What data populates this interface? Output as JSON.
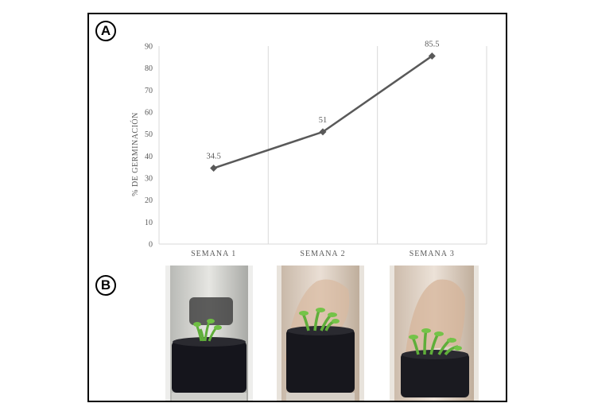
{
  "panels": {
    "a": "A",
    "b": "B"
  },
  "chart_data": {
    "type": "line",
    "categories": [
      "SEMANA 1",
      "SEMANA 2",
      "SEMANA 3"
    ],
    "series": [
      {
        "values": [
          34.5,
          51,
          85.5
        ]
      }
    ],
    "data_labels": [
      "34.5",
      "51",
      "85.5"
    ],
    "ylabel": "% DE GERMINACIÓN",
    "ylim": [
      0,
      90
    ],
    "yticks": [
      0,
      10,
      20,
      30,
      40,
      50,
      60,
      70,
      80,
      90
    ],
    "vertical_separators": true,
    "line_color": "#595959",
    "marker": "diamond"
  },
  "photos": [
    {
      "name": "photo-week-1"
    },
    {
      "name": "photo-week-2"
    },
    {
      "name": "photo-week-3"
    }
  ]
}
